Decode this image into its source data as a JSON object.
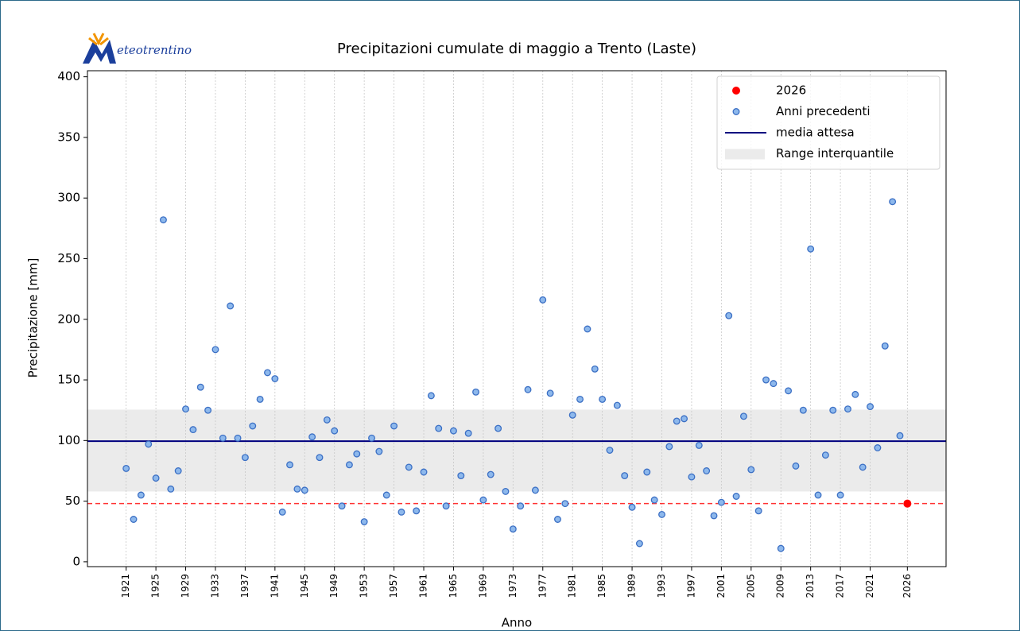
{
  "chart_data": {
    "type": "scatter",
    "logo_text": "eteotrentino",
    "title": "Precipitazioni cumulate di maggio a Trento (Laste)",
    "xlabel": "Anno",
    "ylabel": "Precipitazione [mm]",
    "xlim": [
      1915.8,
      2031.2
    ],
    "ylim": [
      -4,
      405
    ],
    "xticks": [
      1921,
      1925,
      1929,
      1933,
      1937,
      1941,
      1945,
      1949,
      1953,
      1957,
      1961,
      1965,
      1969,
      1973,
      1977,
      1981,
      1985,
      1989,
      1993,
      1997,
      2001,
      2005,
      2009,
      2013,
      2017,
      2021,
      2026
    ],
    "yticks": [
      0,
      50,
      100,
      150,
      200,
      250,
      300,
      350,
      400
    ],
    "grid": "x",
    "legend": "upper right",
    "series": [
      {
        "name": "2026",
        "color": "#ff0000",
        "x": [
          2026
        ],
        "values": [
          48
        ],
        "reference_line": true
      },
      {
        "name": "Anni precedenti",
        "color": "#8db8ec",
        "edge_color": "#3b6fc4",
        "x": [
          1921,
          1922,
          1923,
          1924,
          1925,
          1926,
          1927,
          1928,
          1929,
          1930,
          1931,
          1932,
          1933,
          1934,
          1935,
          1936,
          1937,
          1938,
          1939,
          1940,
          1941,
          1942,
          1943,
          1944,
          1945,
          1946,
          1947,
          1948,
          1949,
          1950,
          1951,
          1952,
          1953,
          1954,
          1955,
          1956,
          1957,
          1958,
          1959,
          1960,
          1961,
          1962,
          1963,
          1964,
          1965,
          1966,
          1967,
          1968,
          1969,
          1970,
          1971,
          1972,
          1973,
          1974,
          1975,
          1976,
          1977,
          1978,
          1979,
          1980,
          1981,
          1982,
          1983,
          1984,
          1985,
          1986,
          1987,
          1988,
          1989,
          1990,
          1991,
          1992,
          1993,
          1994,
          1995,
          1996,
          1997,
          1998,
          1999,
          2000,
          2001,
          2002,
          2003,
          2004,
          2005,
          2006,
          2007,
          2008,
          2009,
          2010,
          2011,
          2012,
          2013,
          2014,
          2015,
          2016,
          2017,
          2018,
          2019,
          2020,
          2021,
          2022,
          2023,
          2024,
          2025
        ],
        "values": [
          77,
          35,
          55,
          97,
          69,
          282,
          60,
          75,
          126,
          109,
          144,
          125,
          175,
          102,
          211,
          102,
          86,
          112,
          134,
          156,
          151,
          41,
          80,
          60,
          59,
          103,
          86,
          117,
          108,
          46,
          80,
          89,
          33,
          102,
          91,
          55,
          112,
          41,
          78,
          42,
          74,
          137,
          110,
          46,
          108,
          71,
          106,
          140,
          51,
          72,
          110,
          58,
          27,
          46,
          142,
          59,
          216,
          139,
          35,
          48,
          121,
          134,
          192,
          159,
          134,
          92,
          129,
          71,
          45,
          15,
          74,
          51,
          39,
          95,
          116,
          118,
          70,
          96,
          75,
          38,
          49,
          203,
          54,
          120,
          76,
          42,
          150,
          147,
          11,
          141,
          79,
          125,
          258,
          55,
          88,
          125,
          55,
          126,
          138,
          78,
          128,
          94,
          178,
          297,
          104
        ]
      }
    ],
    "mean_line": {
      "name": "media attesa",
      "color": "#00007f",
      "value": 99.5
    },
    "band": {
      "name": "Range interquantile",
      "color": "#ebebeb",
      "low": 58,
      "high": 125.5
    }
  }
}
